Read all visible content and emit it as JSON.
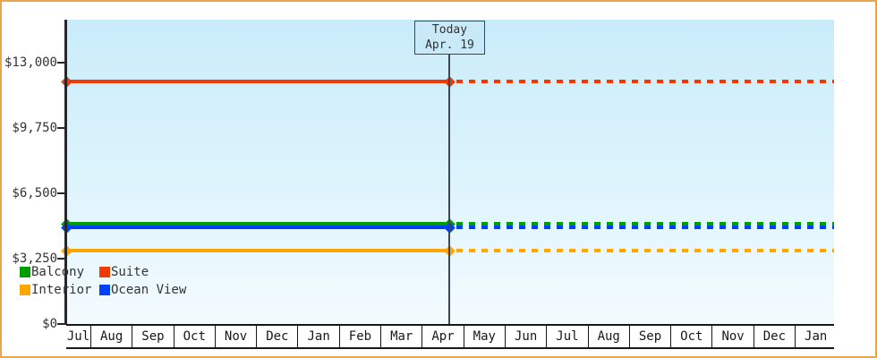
{
  "frame": {
    "border_color": "#e8a44f",
    "background": "#ffffff"
  },
  "today_marker": {
    "line1": "Today",
    "line2": "Apr. 19"
  },
  "chart_data": {
    "type": "line",
    "title": "",
    "xlabel": "",
    "ylabel": "",
    "ylim": [
      0,
      13000
    ],
    "grid": false,
    "x_categories": [
      "Jul",
      "Aug",
      "Sep",
      "Oct",
      "Nov",
      "Dec",
      "Jan",
      "Feb",
      "Mar",
      "Apr",
      "May",
      "Jun",
      "Jul",
      "Aug",
      "Sep",
      "Oct",
      "Nov",
      "Dec",
      "Jan"
    ],
    "y_ticks": [
      {
        "label": "$13,000",
        "value": 13000
      },
      {
        "label": "$9,750",
        "value": 9750
      },
      {
        "label": "$6,500",
        "value": 6500
      },
      {
        "label": "$3,250",
        "value": 3250
      },
      {
        "label": "$0",
        "value": 0
      }
    ],
    "today": {
      "label": "Today Apr. 19",
      "note": "lines solid before today, dotted after"
    },
    "series": [
      {
        "name": "Suite",
        "color": "#f23a00",
        "value": 12050
      },
      {
        "name": "Balcony",
        "color": "#009d00",
        "value": 4990
      },
      {
        "name": "Ocean View",
        "color": "#0040ff",
        "value": 4810
      },
      {
        "name": "Interior",
        "color": "#ffa500",
        "value": 3630
      }
    ],
    "legend": {
      "position": "bottom-left",
      "entries": [
        {
          "label": "Balcony",
          "color": "#009d00"
        },
        {
          "label": "Suite",
          "color": "#f23a00"
        },
        {
          "label": "Interior",
          "color": "#ffa500"
        },
        {
          "label": "Ocean View",
          "color": "#0040ff"
        }
      ]
    }
  }
}
